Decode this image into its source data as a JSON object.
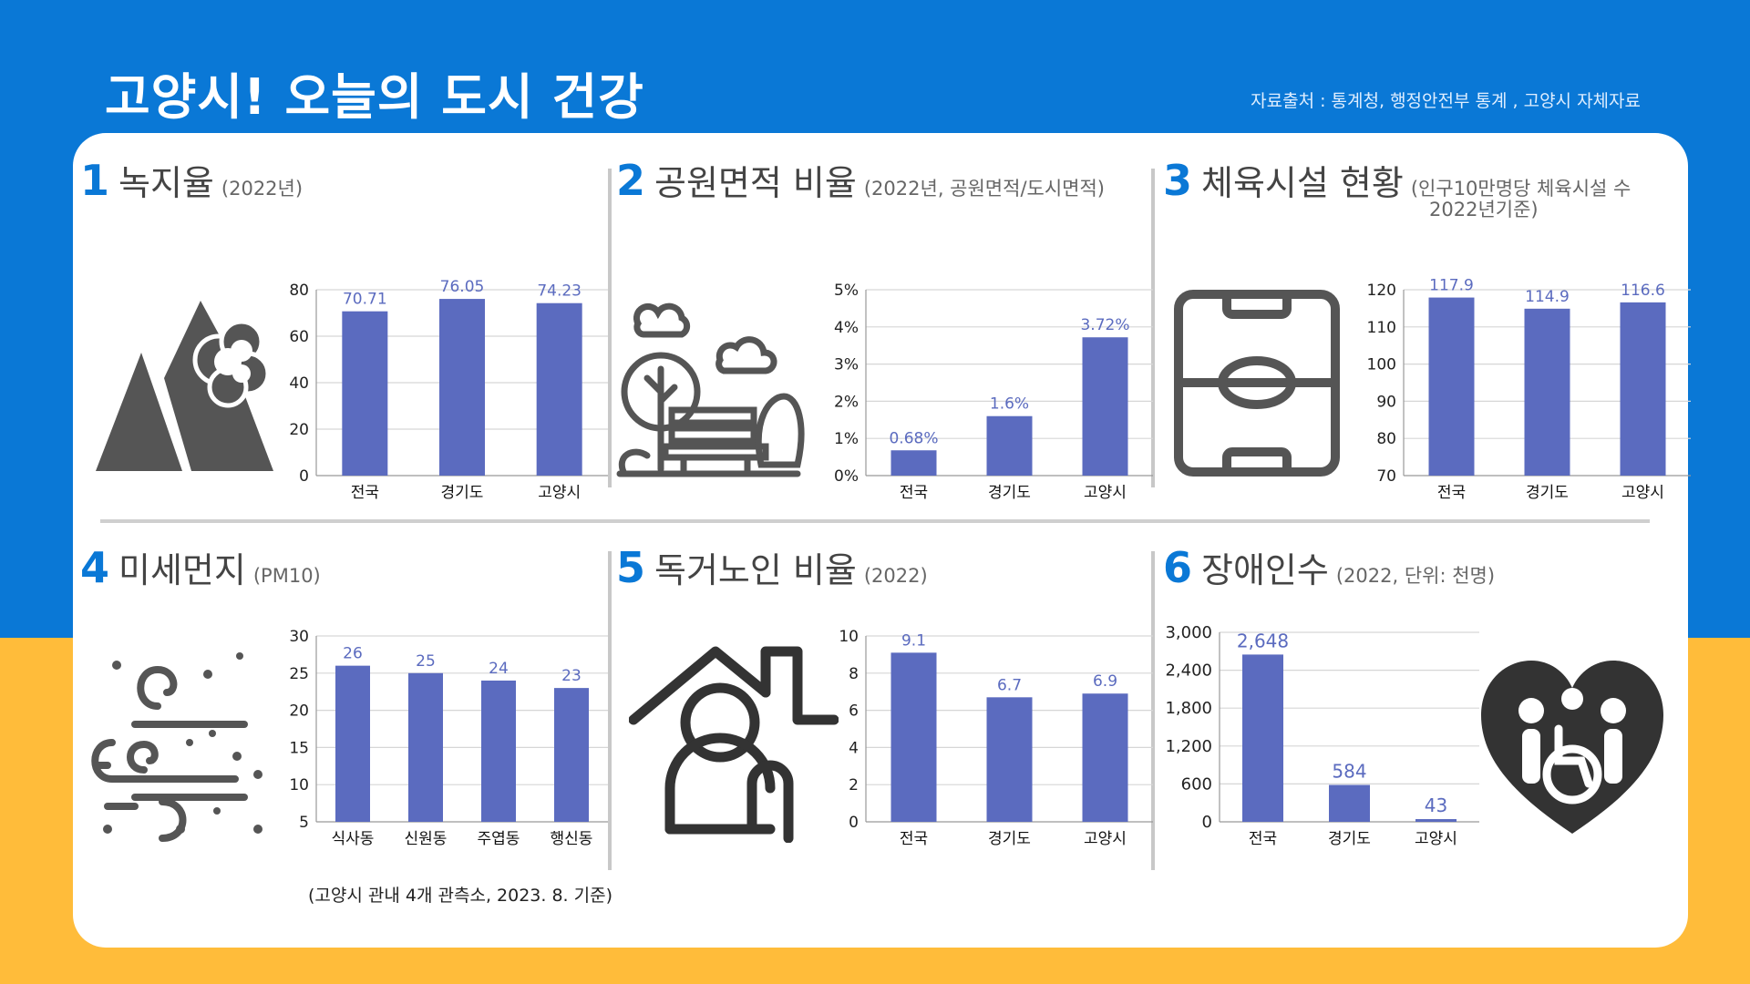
{
  "header": {
    "title": "고양시! 오늘의 도시 건강",
    "source": "자료출처 : 통계청, 행정안전부 통계 , 고양시 자체자료"
  },
  "colors": {
    "bar": "#5b6bbf",
    "label": "#5b6bbf",
    "accent": "#0a78d6",
    "icon": "#555555"
  },
  "panels": [
    {
      "num": "1",
      "title": "녹지율",
      "subtitle": "(2022년)",
      "icon": "mountain-cloud-icon"
    },
    {
      "num": "2",
      "title": "공원면적 비율",
      "subtitle": "(2022년, 공원면적/도시면적)",
      "icon": "park-bench-icon"
    },
    {
      "num": "3",
      "title": "체육시설 현황",
      "subtitle": "(인구10만명당 체육시설 수",
      "subtitle2": "2022년기준)",
      "icon": "soccer-field-icon"
    },
    {
      "num": "4",
      "title": "미세먼지",
      "subtitle": "(PM10)",
      "icon": "wind-dust-icon",
      "note": "(고양시 관내 4개 관측소, 2023. 8. 기준)"
    },
    {
      "num": "5",
      "title": "독거노인 비율",
      "subtitle": "(2022)",
      "icon": "elderly-home-icon"
    },
    {
      "num": "6",
      "title": "장애인수",
      "subtitle": "(2022, 단위: 천명)",
      "icon": "disability-heart-icon"
    }
  ],
  "chart_data": [
    {
      "type": "bar",
      "categories": [
        "전국",
        "경기도",
        "고양시"
      ],
      "values": [
        70.71,
        76.05,
        74.23
      ],
      "labels": [
        "70.71",
        "76.05",
        "74.23"
      ],
      "ylim": [
        0,
        80
      ],
      "yticks": [
        "0",
        "20",
        "40",
        "60",
        "80"
      ],
      "grid": true
    },
    {
      "type": "bar",
      "categories": [
        "전국",
        "경기도",
        "고양시"
      ],
      "values": [
        0.68,
        1.6,
        3.72
      ],
      "labels": [
        "0.68%",
        "1.6%",
        "3.72%"
      ],
      "ylim": [
        0,
        5
      ],
      "yticks": [
        "0%",
        "1%",
        "2%",
        "3%",
        "4%",
        "5%"
      ],
      "grid": true
    },
    {
      "type": "bar",
      "categories": [
        "전국",
        "경기도",
        "고양시"
      ],
      "values": [
        117.9,
        114.9,
        116.6
      ],
      "labels": [
        "117.9",
        "114.9",
        "116.6"
      ],
      "ylim": [
        70,
        120
      ],
      "yticks": [
        "70",
        "80",
        "90",
        "100",
        "110",
        "120"
      ],
      "grid": true
    },
    {
      "type": "bar",
      "categories": [
        "식사동",
        "신원동",
        "주엽동",
        "행신동"
      ],
      "values": [
        26,
        25,
        24,
        23
      ],
      "labels": [
        "26",
        "25",
        "24",
        "23"
      ],
      "ylim": [
        5,
        30
      ],
      "yticks": [
        "5",
        "10",
        "15",
        "20",
        "25",
        "30"
      ],
      "grid": true
    },
    {
      "type": "bar",
      "categories": [
        "전국",
        "경기도",
        "고양시"
      ],
      "values": [
        9.1,
        6.7,
        6.9
      ],
      "labels": [
        "9.1",
        "6.7",
        "6.9"
      ],
      "ylim": [
        0,
        10
      ],
      "yticks": [
        "0",
        "2",
        "4",
        "6",
        "8",
        "10"
      ],
      "grid": true
    },
    {
      "type": "bar",
      "categories": [
        "전국",
        "경기도",
        "고양시"
      ],
      "values": [
        2648,
        584,
        43
      ],
      "labels": [
        "2,648",
        "584",
        "43"
      ],
      "ylim": [
        0,
        3000
      ],
      "yticks": [
        "0",
        "600",
        "1,200",
        "1,800",
        "2,400",
        "3,000"
      ],
      "grid": true
    }
  ]
}
